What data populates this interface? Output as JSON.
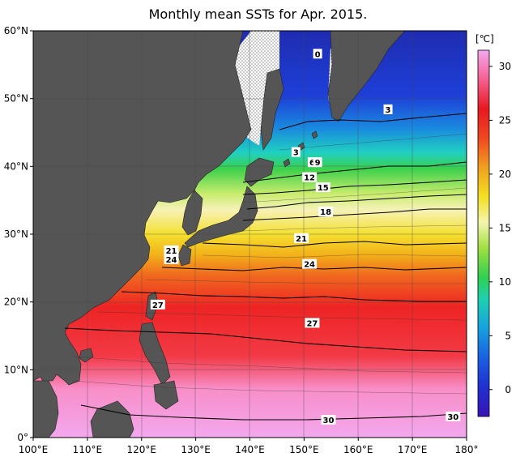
{
  "title": "Monthly mean SSTs for Apr. 2015.",
  "map": {
    "lon_range": [
      100,
      180
    ],
    "lat_range": [
      0,
      60
    ],
    "lon_ticks": [
      "100°E",
      "110°E",
      "120°E",
      "130°E",
      "140°E",
      "150°E",
      "160°E",
      "170°E",
      "180°"
    ],
    "lat_ticks": [
      "0°",
      "10°N",
      "20°N",
      "30°N",
      "40°N",
      "50°N",
      "60°N"
    ],
    "land_color": "#555555",
    "sea_ice_color": "#ffffff",
    "contour_labels": [
      {
        "text": "0",
        "lon": 152.5,
        "lat": 56.5
      },
      {
        "text": "3",
        "lon": 165.5,
        "lat": 48.3
      },
      {
        "text": "3",
        "lon": 148.5,
        "lat": 42.0
      },
      {
        "text": "6",
        "lon": 151.5,
        "lat": 40.5
      },
      {
        "text": "9",
        "lon": 152.5,
        "lat": 40.5
      },
      {
        "text": "12",
        "lon": 151.0,
        "lat": 38.3
      },
      {
        "text": "15",
        "lon": 153.5,
        "lat": 36.8
      },
      {
        "text": "18",
        "lon": 154.0,
        "lat": 33.2
      },
      {
        "text": "21",
        "lon": 149.5,
        "lat": 29.3
      },
      {
        "text": "21",
        "lon": 125.5,
        "lat": 27.5
      },
      {
        "text": "24",
        "lon": 125.5,
        "lat": 26.2
      },
      {
        "text": "24",
        "lon": 151.0,
        "lat": 25.5
      },
      {
        "text": "27",
        "lon": 123.0,
        "lat": 19.5
      },
      {
        "text": "27",
        "lon": 151.5,
        "lat": 16.8
      },
      {
        "text": "30",
        "lon": 154.5,
        "lat": 2.5
      },
      {
        "text": "30",
        "lon": 177.5,
        "lat": 3.0
      }
    ]
  },
  "colorbar": {
    "unit": "[℃]",
    "range": [
      -2.5,
      31.5
    ],
    "ticks": [
      "0",
      "5",
      "10",
      "15",
      "20",
      "25",
      "30"
    ],
    "tick_values": [
      0,
      5,
      10,
      15,
      20,
      25,
      30
    ],
    "colors": [
      "#3a1ab8",
      "#1f3ad8",
      "#1a70e6",
      "#14a8e0",
      "#1ed2b4",
      "#2fd25a",
      "#7ae030",
      "#c6ec40",
      "#f4f49a",
      "#f8f0c0",
      "#f4e840",
      "#f0c000",
      "#f09020",
      "#f05020",
      "#e81818",
      "#f03848",
      "#f8a0d0",
      "#f0a8f0"
    ]
  }
}
